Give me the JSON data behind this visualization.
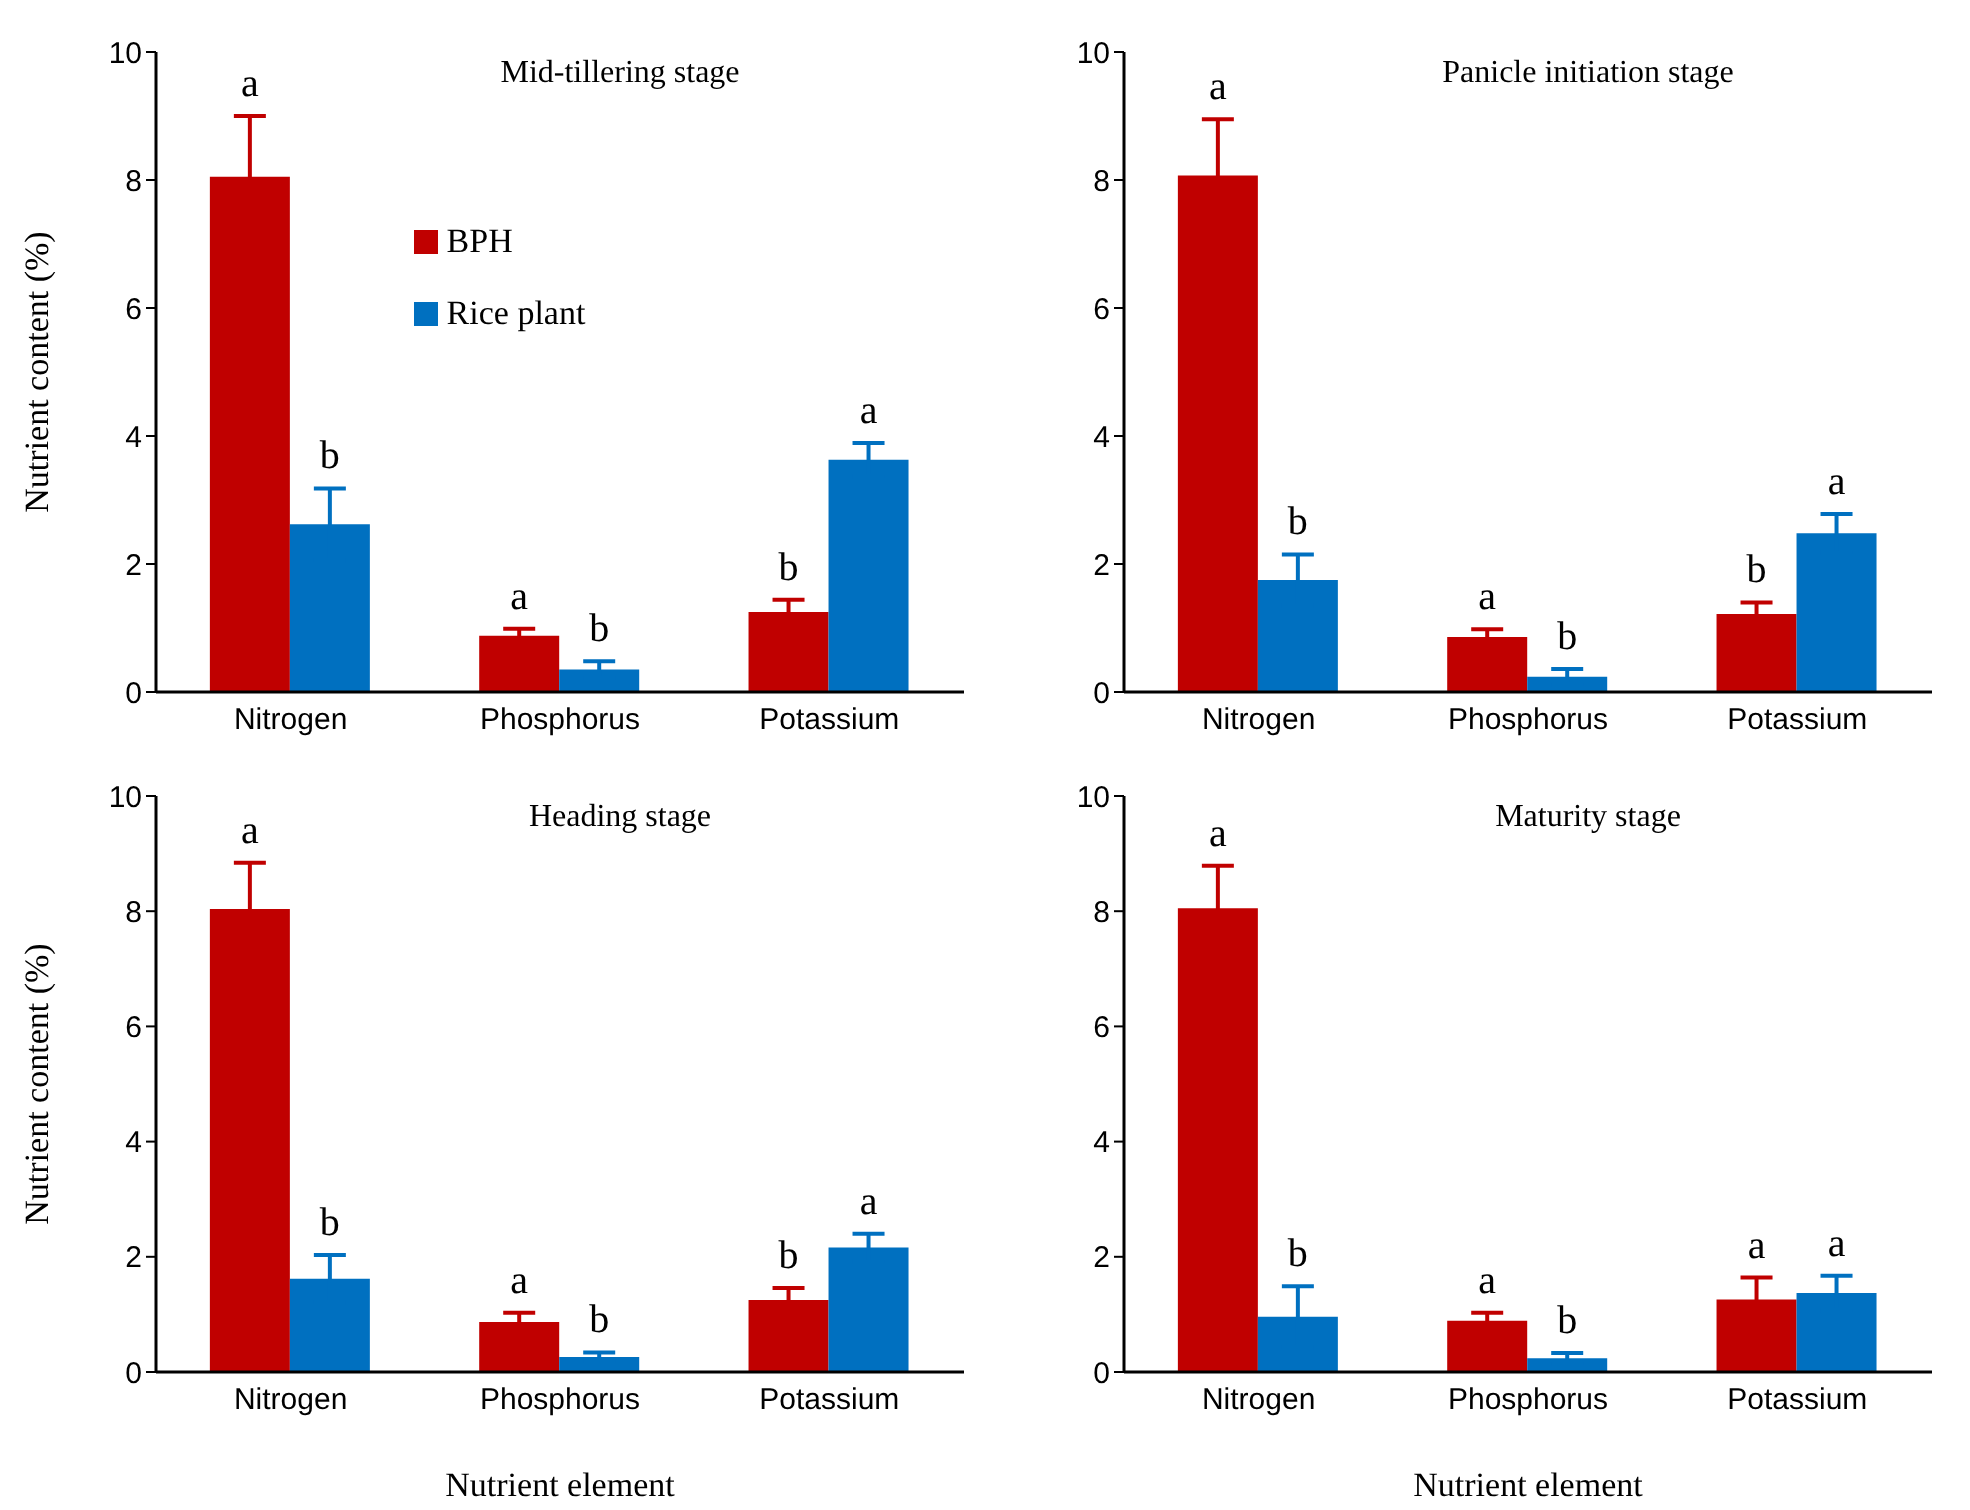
{
  "chart_data": [
    {
      "type": "bar",
      "title": "Mid-tillering stage",
      "ylabel": "Nutrient content (%)",
      "categories": [
        "Nitrogen",
        "Phosphorus",
        "Potassium"
      ],
      "ylim": [
        0,
        10
      ],
      "yticks": [
        0,
        2,
        4,
        6,
        8,
        10
      ],
      "legend": "top",
      "series": [
        {
          "name": "BPH",
          "color": "#c00000",
          "values": [
            8.05,
            0.88,
            1.25
          ],
          "errors": [
            0.95,
            0.11,
            0.19
          ]
        },
        {
          "name": "Rice plant",
          "color": "#0070c0",
          "values": [
            2.62,
            0.35,
            3.63
          ],
          "errors": [
            0.56,
            0.13,
            0.26
          ]
        }
      ],
      "annotations": [
        {
          "text": "a",
          "x": "Nitrogen",
          "y": 8.05
        },
        {
          "text": "b",
          "x": "Nitrogen",
          "y": 2.62
        },
        {
          "text": "a",
          "x": "Phosphorus",
          "y": 0.88
        },
        {
          "text": "b",
          "x": "Phosphorus",
          "y": 0.35
        },
        {
          "text": "b",
          "x": "Potassium",
          "y": 1.25
        },
        {
          "text": "a",
          "x": "Potassium",
          "y": 3.63
        }
      ]
    },
    {
      "type": "bar",
      "title": "Panicle initiation stage",
      "categories": [
        "Nitrogen",
        "Phosphorus",
        "Potassium"
      ],
      "ylim": [
        0,
        10
      ],
      "yticks": [
        0,
        2,
        4,
        6,
        8,
        10
      ],
      "series": [
        {
          "color": "#c00000",
          "values": [
            8.07,
            0.86,
            1.22
          ],
          "errors": [
            0.88,
            0.12,
            0.18
          ]
        },
        {
          "color": "#0070c0",
          "values": [
            1.75,
            0.24,
            2.48
          ],
          "errors": [
            0.4,
            0.12,
            0.3
          ]
        }
      ],
      "annotations": [
        {
          "text": "a",
          "x": "Nitrogen",
          "y": 8.07
        },
        {
          "text": "b",
          "x": "Nitrogen",
          "y": 1.75
        },
        {
          "text": "a",
          "x": "Phosphorus",
          "y": 0.86
        },
        {
          "text": "b",
          "x": "Phosphorus",
          "y": 0.24
        },
        {
          "text": "b",
          "x": "Potassium",
          "y": 1.22
        },
        {
          "text": "a",
          "x": "Potassium",
          "y": 2.48
        }
      ]
    },
    {
      "type": "bar",
      "title": "Heading stage",
      "xlabel": "Nutrient element",
      "ylabel": "Nutrient content (%)",
      "categories": [
        "Nitrogen",
        "Phosphorus",
        "Potassium"
      ],
      "ylim": [
        0,
        10
      ],
      "yticks": [
        0,
        2,
        4,
        6,
        8,
        10
      ],
      "series": [
        {
          "color": "#c00000",
          "values": [
            8.04,
            0.87,
            1.25
          ],
          "errors": [
            0.8,
            0.16,
            0.21
          ]
        },
        {
          "color": "#0070c0",
          "values": [
            1.62,
            0.26,
            2.16
          ],
          "errors": [
            0.41,
            0.08,
            0.24
          ]
        }
      ],
      "annotations": [
        {
          "text": "a",
          "x": "Nitrogen",
          "y": 8.04
        },
        {
          "text": "b",
          "x": "Nitrogen",
          "y": 1.62
        },
        {
          "text": "a",
          "x": "Phosphorus",
          "y": 0.87
        },
        {
          "text": "b",
          "x": "Phosphorus",
          "y": 0.26
        },
        {
          "text": "b",
          "x": "Potassium",
          "y": 1.25
        },
        {
          "text": "a",
          "x": "Potassium",
          "y": 2.16
        }
      ]
    },
    {
      "type": "bar",
      "title": "Maturity stage",
      "xlabel": "Nutrient element",
      "categories": [
        "Nitrogen",
        "Phosphorus",
        "Potassium"
      ],
      "ylim": [
        0,
        10
      ],
      "yticks": [
        0,
        2,
        4,
        6,
        8,
        10
      ],
      "series": [
        {
          "color": "#c00000",
          "values": [
            8.05,
            0.89,
            1.26
          ],
          "errors": [
            0.74,
            0.14,
            0.38
          ]
        },
        {
          "color": "#0070c0",
          "values": [
            0.96,
            0.24,
            1.37
          ],
          "errors": [
            0.53,
            0.09,
            0.3
          ]
        }
      ],
      "annotations": [
        {
          "text": "a",
          "x": "Nitrogen",
          "y": 8.05
        },
        {
          "text": "b",
          "x": "Nitrogen",
          "y": 0.96
        },
        {
          "text": "a",
          "x": "Phosphorus",
          "y": 0.89
        },
        {
          "text": "b",
          "x": "Phosphorus",
          "y": 0.24
        },
        {
          "text": "a",
          "x": "Potassium",
          "y": 1.26
        },
        {
          "text": "a",
          "x": "Potassium",
          "y": 1.37
        }
      ]
    }
  ]
}
